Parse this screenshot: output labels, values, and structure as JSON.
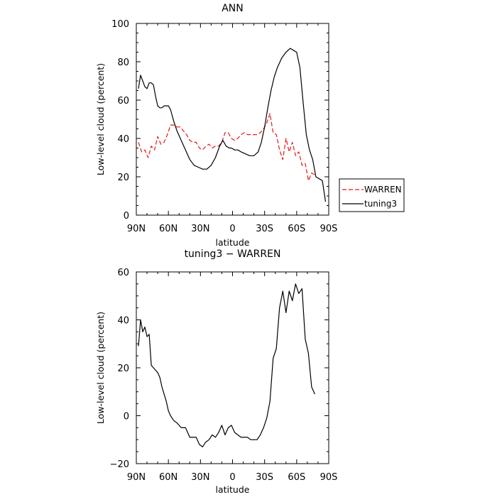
{
  "chart_data": [
    {
      "type": "line",
      "title": "ANN",
      "xlabel": "latitude",
      "ylabel": "Low-level cloud (percent)",
      "xlim": [
        90,
        -90
      ],
      "ylim": [
        0,
        100
      ],
      "x_tick_values": [
        90,
        60,
        30,
        0,
        -30,
        -60,
        -90
      ],
      "x_tick_labels": [
        "90N",
        "60N",
        "30N",
        "0",
        "30S",
        "60S",
        "90S"
      ],
      "y_tick_values": [
        0,
        20,
        40,
        60,
        80,
        100
      ],
      "y_tick_labels": [
        "0",
        "20",
        "40",
        "60",
        "80",
        "100"
      ],
      "legend": {
        "position": "right",
        "entries": [
          "WARREN",
          "tuning3"
        ]
      },
      "series": [
        {
          "name": "WARREN",
          "color": "#e31a1c",
          "dash": "dashed",
          "x": [
            88,
            85,
            82,
            79,
            76,
            73,
            70,
            67,
            64,
            61,
            58,
            55,
            52,
            49,
            46,
            43,
            40,
            37,
            34,
            31,
            28,
            25,
            22,
            19,
            16,
            13,
            10,
            7,
            4,
            1,
            -2,
            -5,
            -8,
            -11,
            -14,
            -17,
            -20,
            -23,
            -26,
            -29,
            -32,
            -35,
            -38,
            -41,
            -44,
            -47,
            -50,
            -53,
            -56,
            -59,
            -62,
            -65,
            -68,
            -71,
            -74,
            -77
          ],
          "y": [
            38,
            33,
            34,
            30,
            36,
            34,
            41,
            37,
            38,
            42,
            47,
            47,
            46,
            46,
            44,
            42,
            39,
            38,
            38,
            35,
            34,
            36,
            37,
            35,
            36,
            36,
            38,
            43,
            43,
            40,
            39,
            40,
            42,
            43,
            42,
            42,
            42,
            42,
            43,
            45,
            48,
            53,
            43,
            42,
            34,
            29,
            40,
            33,
            38,
            31,
            33,
            26,
            27,
            18,
            22,
            21
          ]
        },
        {
          "name": "tuning3",
          "color": "#000000",
          "dash": "solid",
          "x": [
            88,
            86,
            84,
            82,
            80,
            78,
            76,
            74,
            72,
            70,
            68,
            66,
            64,
            62,
            60,
            58,
            55,
            52,
            48,
            44,
            40,
            36,
            32,
            28,
            24,
            20,
            16,
            12,
            9,
            6,
            3,
            1,
            -2,
            -5,
            -8,
            -12,
            -16,
            -20,
            -24,
            -27,
            -30,
            -33,
            -36,
            -39,
            -42,
            -46,
            -50,
            -54,
            -57,
            -60,
            -63,
            -66,
            -69,
            -72,
            -75,
            -78,
            -81,
            -84,
            -87
          ],
          "y": [
            66,
            73,
            70,
            67,
            66,
            69,
            69,
            68,
            62,
            57,
            56,
            56,
            57,
            57,
            57,
            55,
            49,
            44,
            39,
            34,
            29,
            26,
            25,
            24,
            24,
            26,
            30,
            36,
            39,
            36,
            35,
            35,
            34,
            34,
            33,
            32,
            31,
            31,
            33,
            38,
            46,
            56,
            65,
            72,
            77,
            82,
            85,
            87,
            86,
            85,
            77,
            59,
            42,
            34,
            29,
            20,
            19,
            18,
            7
          ]
        }
      ]
    },
    {
      "type": "line",
      "title": "tuning3 − WARREN",
      "xlabel": "latitude",
      "ylabel": "Low-level cloud (percent)",
      "xlim": [
        90,
        -90
      ],
      "ylim": [
        -20,
        60
      ],
      "x_tick_values": [
        90,
        60,
        30,
        0,
        -30,
        -60,
        -90
      ],
      "x_tick_labels": [
        "90N",
        "60N",
        "30N",
        "0",
        "30S",
        "60S",
        "90S"
      ],
      "y_tick_values": [
        -20,
        0,
        20,
        40,
        60
      ],
      "y_tick_labels": [
        "−20",
        "0",
        "20",
        "40",
        "60"
      ],
      "series": [
        {
          "color": "#000000",
          "dash": "solid",
          "x": [
            88,
            86,
            84,
            82,
            80,
            78,
            76,
            74,
            72,
            70,
            68,
            66,
            64,
            62,
            60,
            58,
            55,
            52,
            48,
            44,
            42,
            40,
            37,
            34,
            31,
            28,
            25,
            22,
            19,
            16,
            13,
            10,
            7,
            4,
            1,
            -2,
            -5,
            -8,
            -11,
            -14,
            -17,
            -20,
            -23,
            -26,
            -29,
            -32,
            -35,
            -38,
            -41,
            -44,
            -47,
            -50,
            -53,
            -56,
            -59,
            -62,
            -65,
            -68,
            -71,
            -74,
            -77
          ],
          "y": [
            29,
            40,
            35,
            37,
            33,
            34,
            21,
            20,
            19,
            18,
            16,
            12,
            9,
            6,
            2,
            0,
            -2,
            -3,
            -5,
            -5,
            -7,
            -9,
            -9,
            -9,
            -12,
            -13,
            -11,
            -10,
            -8,
            -9,
            -7,
            -4,
            -8,
            -5,
            -4,
            -7,
            -8,
            -9,
            -9,
            -9,
            -10,
            -10,
            -10,
            -8,
            -5,
            -1,
            6,
            24,
            28,
            45,
            52,
            43,
            52,
            48,
            55,
            51,
            53,
            32,
            26,
            12,
            9
          ]
        }
      ]
    }
  ]
}
